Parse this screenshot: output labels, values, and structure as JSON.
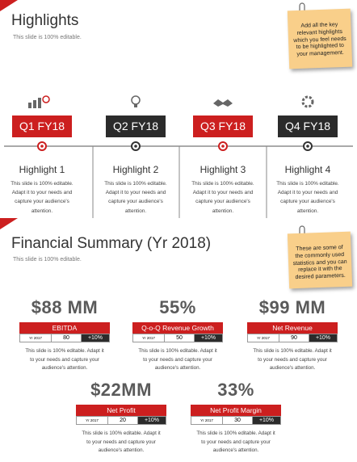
{
  "highlights": {
    "title": "Highlights",
    "subtitle": "This slide is 100% editable.",
    "note": "Add all the key relevant highlights which you feel needs to be highlighted to your management.",
    "quarters": [
      {
        "label": "Q1 FY18",
        "heading": "Highlight 1",
        "text": "This slide is 100% editable. Adapt it to your needs and capture your audience's attention."
      },
      {
        "label": "Q2 FY18",
        "heading": "Highlight 2",
        "text": "This slide is 100% editable. Adapt it to your needs and capture your audience's attention."
      },
      {
        "label": "Q3 FY18",
        "heading": "Highlight 3",
        "text": "This slide is 100% editable. Adapt it to your needs and capture your audience's attention."
      },
      {
        "label": "Q4 FY18",
        "heading": "Highlight 4",
        "text": "This slide is 100% editable. Adapt it to your needs and capture your audience's attention."
      }
    ]
  },
  "financial": {
    "title": "Financial Summary (Yr 2018)",
    "subtitle": "This slide is 100% editable.",
    "note": "These are some of the commonly used statistics and you can replace it with the desired parameters.",
    "metrics": [
      {
        "value": "$88 MM",
        "label": "EBITDA",
        "year": "Yr 2017",
        "prior": "80",
        "change": "+10%",
        "text": "This slide is 100% editable. Adapt it to your needs and capture your audience's attention."
      },
      {
        "value": "55%",
        "label": "Q-o-Q Revenue Growth",
        "year": "Yr 2017",
        "prior": "50",
        "change": "+10%",
        "text": "This slide is 100% editable. Adapt it to your needs and capture your audience's attention."
      },
      {
        "value": "$99 MM",
        "label": "Net Revenue",
        "year": "Yr 2017",
        "prior": "90",
        "change": "+10%",
        "text": "This slide is 100% editable. Adapt it to your needs and capture your audience's attention."
      },
      {
        "value": "$22MM",
        "label": "Net Profit",
        "year": "Yr 2017",
        "prior": "20",
        "change": "+10%",
        "text": "This slide is 100% editable. Adapt it to your needs and capture your audience's attention."
      },
      {
        "value": "33%",
        "label": "Net Profit Margin",
        "year": "Yr 2017",
        "prior": "30",
        "change": "+10%",
        "text": "This slide is 100% editable. Adapt it to your needs and capture your audience's attention."
      }
    ]
  }
}
